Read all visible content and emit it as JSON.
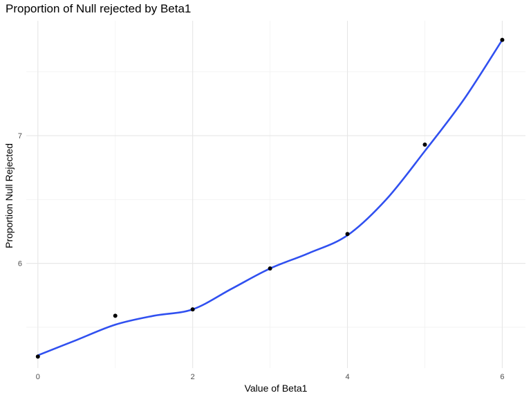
{
  "chart_data": {
    "type": "scatter",
    "title": "Proportion of Null rejected by Beta1",
    "xlabel": "Value of Beta1",
    "ylabel": "Proportion Null Rejected",
    "x": [
      0,
      1,
      2,
      3,
      4,
      5,
      6
    ],
    "y": [
      5.27,
      5.59,
      5.64,
      5.96,
      6.23,
      6.93,
      7.75
    ],
    "xlim": [
      -0.15,
      6.3
    ],
    "ylim": [
      5.18,
      7.9
    ],
    "x_ticks": [
      "0",
      "2",
      "4",
      "6"
    ],
    "y_ticks": [
      "6",
      "7"
    ],
    "x_tick_values": [
      0,
      2,
      4,
      6
    ],
    "y_tick_values": [
      6,
      7
    ],
    "x_minor_ticks": [
      1,
      3,
      5
    ],
    "y_minor_ticks": [
      5.5,
      6.5,
      7.5
    ],
    "smooth_line": {
      "x": [
        0,
        0.5,
        1,
        1.5,
        2,
        2.5,
        3,
        3.5,
        4,
        4.5,
        5,
        5.5,
        6
      ],
      "y": [
        5.28,
        5.4,
        5.52,
        5.59,
        5.64,
        5.8,
        5.96,
        6.08,
        6.22,
        6.5,
        6.88,
        7.28,
        7.75
      ],
      "color": "#3050f0"
    },
    "point_color": "#000000",
    "grid": true,
    "legend": "none"
  }
}
